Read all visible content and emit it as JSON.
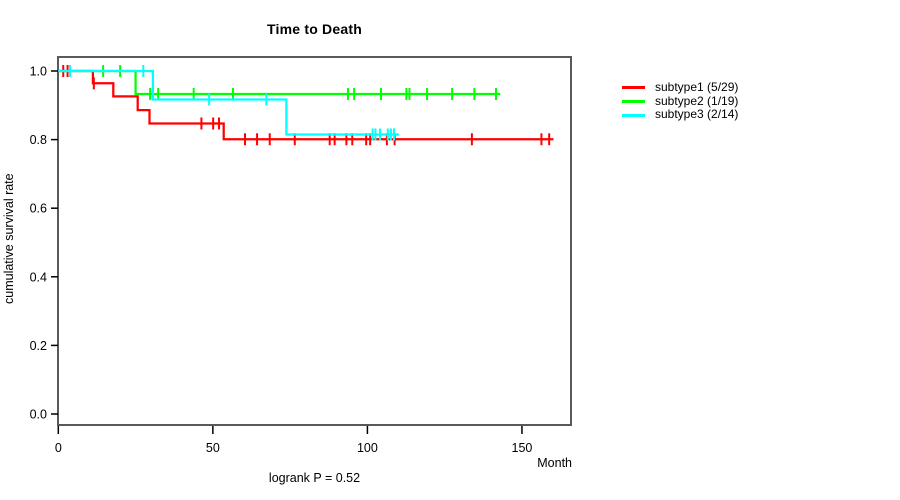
{
  "chart_data": {
    "type": "line",
    "variant": "kaplan-meier-step",
    "title": "Time to Death",
    "xlabel": "Month",
    "ylabel": "cumulative survival rate",
    "annotation": "logrank P = 0.52",
    "xlim": [
      0,
      165.6
    ],
    "ylim": [
      0,
      1.0
    ],
    "grid": false,
    "legend_position": "right-outside",
    "xticks": {
      "values": [
        0,
        50,
        100,
        150
      ],
      "labels": [
        "0",
        "50",
        "100",
        "150"
      ]
    },
    "yticks": {
      "values": [
        0.0,
        0.2,
        0.4,
        0.6,
        0.8,
        1.0
      ],
      "labels": [
        "0.0",
        "0.2",
        "0.4",
        "0.6",
        "0.8",
        "1.0"
      ]
    },
    "series": [
      {
        "name": "subtype1 (5/29)",
        "color": "#ff0000",
        "steps": [
          [
            0,
            1.0
          ],
          [
            11.2,
            0.964
          ],
          [
            17.8,
            0.926
          ],
          [
            25.7,
            0.886
          ],
          [
            29.5,
            0.847
          ],
          [
            53.5,
            0.801
          ],
          [
            160.2,
            0.801
          ]
        ],
        "censor_marks": [
          [
            1.6,
            1.0
          ],
          [
            3.0,
            1.0
          ],
          [
            11.5,
            0.964
          ],
          [
            46.3,
            0.847
          ],
          [
            50.1,
            0.847
          ],
          [
            52.0,
            0.847
          ],
          [
            60.4,
            0.801
          ],
          [
            64.3,
            0.801
          ],
          [
            68.4,
            0.801
          ],
          [
            76.5,
            0.801
          ],
          [
            87.8,
            0.801
          ],
          [
            89.4,
            0.801
          ],
          [
            93.2,
            0.801
          ],
          [
            95.1,
            0.801
          ],
          [
            99.6,
            0.801
          ],
          [
            100.9,
            0.801
          ],
          [
            106.3,
            0.801
          ],
          [
            108.8,
            0.801
          ],
          [
            133.8,
            0.801
          ],
          [
            156.3,
            0.801
          ],
          [
            158.8,
            0.801
          ]
        ]
      },
      {
        "name": "subtype2 (1/19)",
        "color": "#00ff00",
        "steps": [
          [
            0,
            1.0
          ],
          [
            25.0,
            0.933
          ],
          [
            143.0,
            0.933
          ]
        ],
        "censor_marks": [
          [
            14.5,
            1.0
          ],
          [
            20.0,
            1.0
          ],
          [
            29.7,
            0.933
          ],
          [
            32.3,
            0.933
          ],
          [
            43.8,
            0.933
          ],
          [
            56.5,
            0.933
          ],
          [
            93.7,
            0.933
          ],
          [
            95.7,
            0.933
          ],
          [
            104.4,
            0.933
          ],
          [
            112.6,
            0.933
          ],
          [
            113.6,
            0.933
          ],
          [
            119.3,
            0.933
          ],
          [
            127.4,
            0.933
          ],
          [
            134.6,
            0.933
          ],
          [
            141.6,
            0.933
          ]
        ]
      },
      {
        "name": "subtype3 (2/14)",
        "color": "#00ffff",
        "steps": [
          [
            0,
            1.0
          ],
          [
            30.6,
            0.917
          ],
          [
            73.8,
            0.815
          ],
          [
            110.2,
            0.815
          ]
        ],
        "censor_marks": [
          [
            3.8,
            1.0
          ],
          [
            27.5,
            1.0
          ],
          [
            48.8,
            0.917
          ],
          [
            67.3,
            0.917
          ],
          [
            101.7,
            0.815
          ],
          [
            102.6,
            0.815
          ],
          [
            104.1,
            0.815
          ],
          [
            106.6,
            0.815
          ],
          [
            107.6,
            0.815
          ],
          [
            108.6,
            0.815
          ]
        ]
      }
    ]
  }
}
